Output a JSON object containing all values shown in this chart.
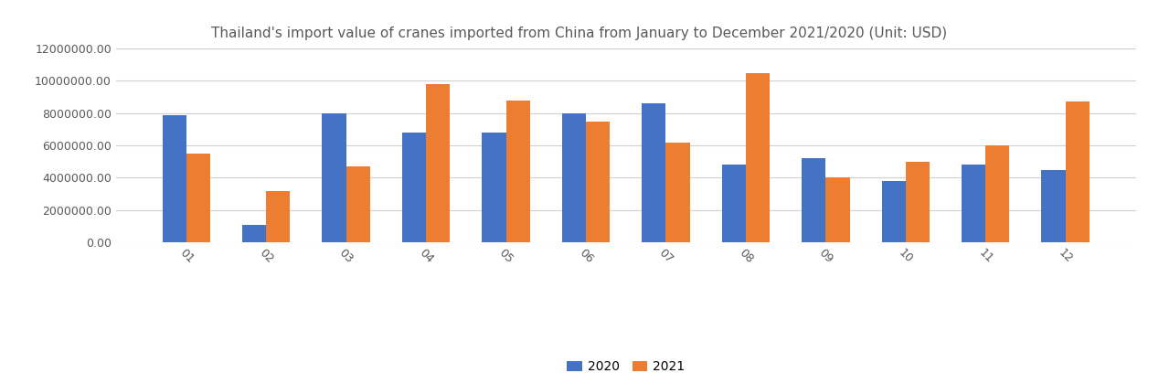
{
  "title": "Thailand's import value of cranes imported from China from January to December 2021/2020 (Unit: USD)",
  "months": [
    "01",
    "02",
    "03",
    "04",
    "05",
    "06",
    "07",
    "08",
    "09",
    "10",
    "11",
    "12"
  ],
  "values_2020": [
    7900000,
    1100000,
    8000000,
    6800000,
    6800000,
    8000000,
    8600000,
    4800000,
    5200000,
    3800000,
    4800000,
    4500000
  ],
  "values_2021": [
    5500000,
    3200000,
    4700000,
    9800000,
    8800000,
    7500000,
    6200000,
    10500000,
    4000000,
    5000000,
    6000000,
    8700000
  ],
  "color_2020": "#4472C4",
  "color_2021": "#ED7D31",
  "ylim": [
    0,
    12000000
  ],
  "yticks": [
    0,
    2000000,
    4000000,
    6000000,
    8000000,
    10000000,
    12000000
  ],
  "legend_labels": [
    "2020",
    "2021"
  ],
  "background_color": "#ffffff",
  "grid_color": "#d0d0d0",
  "title_color": "#595959",
  "tick_color": "#595959",
  "bar_width": 0.3,
  "title_fontsize": 11,
  "tick_fontsize": 9
}
